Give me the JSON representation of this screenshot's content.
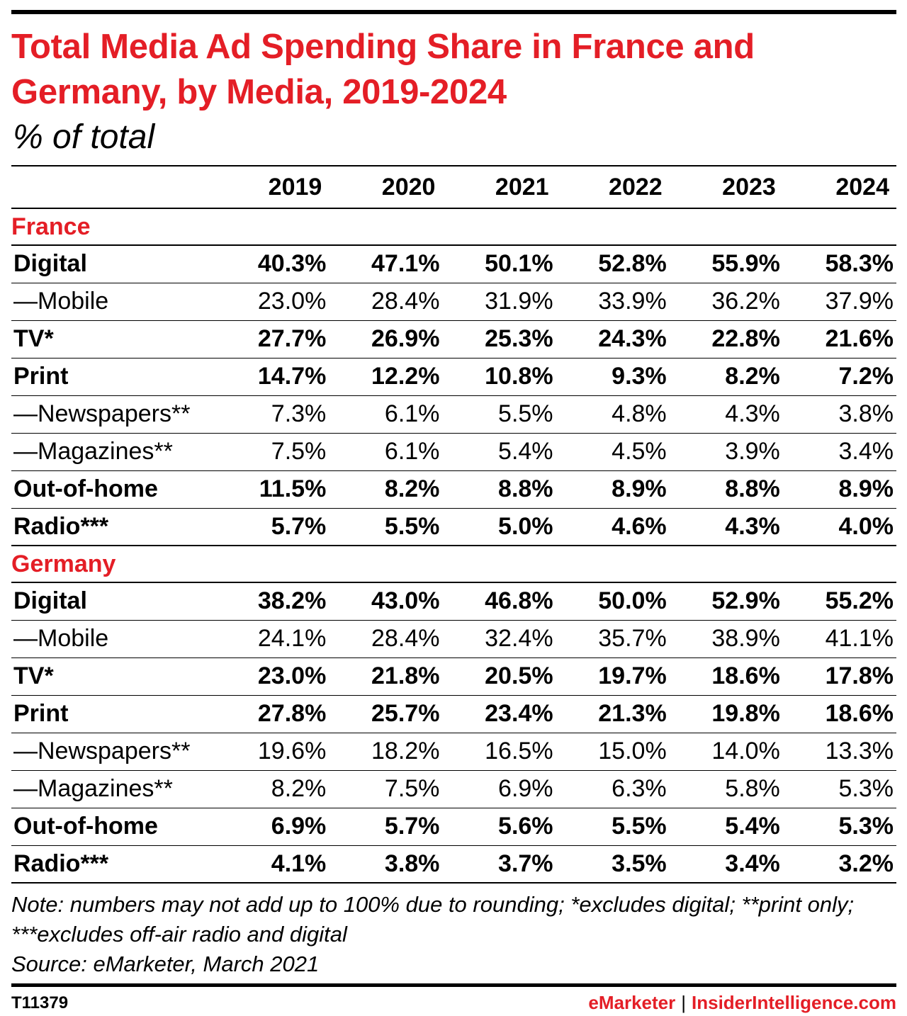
{
  "chart_data": {
    "type": "table",
    "title": "Total Media Ad Spending Share in France and Germany, by Media, 2019-2024",
    "subtitle": "% of total",
    "columns": [
      "2019",
      "2020",
      "2021",
      "2022",
      "2023",
      "2024"
    ],
    "sections": [
      {
        "name": "France",
        "rows": [
          {
            "label": "Digital",
            "bold": true,
            "values": [
              "40.3%",
              "47.1%",
              "50.1%",
              "52.8%",
              "55.9%",
              "58.3%"
            ]
          },
          {
            "label": "—Mobile",
            "bold": false,
            "values": [
              "23.0%",
              "28.4%",
              "31.9%",
              "33.9%",
              "36.2%",
              "37.9%"
            ]
          },
          {
            "label": "TV*",
            "bold": true,
            "values": [
              "27.7%",
              "26.9%",
              "25.3%",
              "24.3%",
              "22.8%",
              "21.6%"
            ]
          },
          {
            "label": "Print",
            "bold": true,
            "values": [
              "14.7%",
              "12.2%",
              "10.8%",
              "9.3%",
              "8.2%",
              "7.2%"
            ]
          },
          {
            "label": "—Newspapers**",
            "bold": false,
            "values": [
              "7.3%",
              "6.1%",
              "5.5%",
              "4.8%",
              "4.3%",
              "3.8%"
            ]
          },
          {
            "label": "—Magazines**",
            "bold": false,
            "values": [
              "7.5%",
              "6.1%",
              "5.4%",
              "4.5%",
              "3.9%",
              "3.4%"
            ]
          },
          {
            "label": "Out-of-home",
            "bold": true,
            "values": [
              "11.5%",
              "8.2%",
              "8.8%",
              "8.9%",
              "8.8%",
              "8.9%"
            ]
          },
          {
            "label": "Radio***",
            "bold": true,
            "values": [
              "5.7%",
              "5.5%",
              "5.0%",
              "4.6%",
              "4.3%",
              "4.0%"
            ]
          }
        ]
      },
      {
        "name": "Germany",
        "rows": [
          {
            "label": "Digital",
            "bold": true,
            "values": [
              "38.2%",
              "43.0%",
              "46.8%",
              "50.0%",
              "52.9%",
              "55.2%"
            ]
          },
          {
            "label": "—Mobile",
            "bold": false,
            "values": [
              "24.1%",
              "28.4%",
              "32.4%",
              "35.7%",
              "38.9%",
              "41.1%"
            ]
          },
          {
            "label": "TV*",
            "bold": true,
            "values": [
              "23.0%",
              "21.8%",
              "20.5%",
              "19.7%",
              "18.6%",
              "17.8%"
            ]
          },
          {
            "label": "Print",
            "bold": true,
            "values": [
              "27.8%",
              "25.7%",
              "23.4%",
              "21.3%",
              "19.8%",
              "18.6%"
            ]
          },
          {
            "label": "—Newspapers**",
            "bold": false,
            "values": [
              "19.6%",
              "18.2%",
              "16.5%",
              "15.0%",
              "14.0%",
              "13.3%"
            ]
          },
          {
            "label": "—Magazines**",
            "bold": false,
            "values": [
              "8.2%",
              "7.5%",
              "6.9%",
              "6.3%",
              "5.8%",
              "5.3%"
            ]
          },
          {
            "label": "Out-of-home",
            "bold": true,
            "values": [
              "6.9%",
              "5.7%",
              "5.6%",
              "5.5%",
              "5.4%",
              "5.3%"
            ]
          },
          {
            "label": "Radio***",
            "bold": true,
            "values": [
              "4.1%",
              "3.8%",
              "3.7%",
              "3.5%",
              "3.4%",
              "3.2%"
            ]
          }
        ]
      }
    ]
  },
  "notes": {
    "note": "Note: numbers may not add up to 100% due to rounding; *excludes digital; **print only; ***excludes off-air radio and digital",
    "source": "Source: eMarketer, March 2021"
  },
  "footer": {
    "id": "T11379",
    "brand_left": "eMarketer",
    "separator": "|",
    "brand_right": "InsiderIntelligence.com"
  },
  "colors": {
    "accent": "#e41e26",
    "text": "#000000"
  }
}
